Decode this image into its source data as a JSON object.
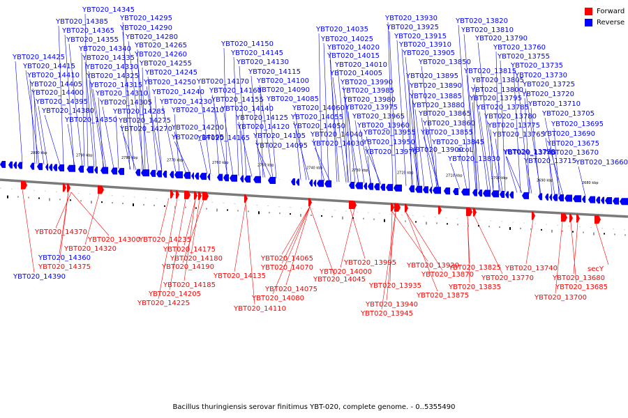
{
  "legend": {
    "forward_label": "Forward",
    "reverse_label": "Reverse",
    "forward_color": "#ff0000",
    "reverse_color": "#0000ff"
  },
  "caption": "Bacillus thuringiensis serovar finitimus YBT-020, complete genome. - 0..5355490",
  "ticks": [
    "2800 kbp",
    "2790 kbp",
    "2780 kbp",
    "2770 kbp",
    "2760 kbp",
    "2750 kbp",
    "2740 kbp",
    "2730 kbp",
    "2720 kbp",
    "2710 kbp",
    "2700 kbp",
    "2690 kbp",
    "2680 kbp"
  ],
  "reverse_labels": [
    "YBT020_14345",
    "YBT020_14385",
    "YBT020_14295",
    "YBT020_14365",
    "YBT020_14290",
    "YBT020_14355",
    "YBT020_14280",
    "YBT020_14340",
    "YBT020_14265",
    "YBT020_14425",
    "YBT020_14335",
    "YBT020_14260",
    "YBT020_14415",
    "YBT020_14330",
    "YBT020_14255",
    "YBT020_14410",
    "YBT020_14325",
    "YBT020_14245",
    "YBT020_14405",
    "YBT020_14315",
    "YBT020_14250",
    "YBT020_14400",
    "YBT020_14310",
    "YBT020_14240",
    "YBT020_14395",
    "YBT020_14305",
    "YBT020_14230",
    "YBT020_14380",
    "YBT020_14285",
    "YBT020_14210",
    "YBT020_14350",
    "YBT020_14275",
    "YBT020_14200",
    "YBT020_14270",
    "YBT020_14195",
    "YBT020_14150",
    "YBT020_14145",
    "YBT020_14130",
    "YBT020_14115",
    "YBT020_14170",
    "YBT020_14100",
    "YBT020_14160",
    "YBT020_14090",
    "YBT020_14155",
    "YBT020_14085",
    "YBT020_14140",
    "YBT020_14060",
    "YBT020_14125",
    "YBT020_14055",
    "YBT020_14120",
    "YBT020_14050",
    "YBT020_14165",
    "YBT020_14105",
    "YBT020_14040",
    "YBT020_14095",
    "YBT020_14030",
    "YBT020_14035",
    "YBT020_14025",
    "YBT020_14020",
    "YBT020_14015",
    "YBT020_14010",
    "YBT020_14005",
    "YBT020_13990",
    "YBT020_13985",
    "YBT020_13980",
    "YBT020_13975",
    "YBT020_13965",
    "YBT020_13960",
    "YBT020_13955",
    "YBT020_13950",
    "YBT020_13970",
    "YBT020_13930",
    "YBT020_13925",
    "YBT020_13915",
    "YBT020_13910",
    "YBT020_13905",
    "YBT020_13850",
    "YBT020_13895",
    "YBT020_13890",
    "YBT020_13885",
    "YBT020_13880",
    "YBT020_13865",
    "YBT020_13860",
    "YBT020_13855",
    "YBT020_13845",
    "YBT020_13900",
    "acoL",
    "YBT020_13830",
    "YBT020_13820",
    "YBT020_13810",
    "YBT020_13790",
    "YBT020_13760",
    "YBT020_13755",
    "YBT020_13735",
    "YBT020_13815",
    "YBT020_13730",
    "YBT020_13805",
    "YBT020_13725",
    "YBT020_13800",
    "YBT020_13720",
    "YBT020_13795",
    "YBT020_13710",
    "YBT020_13785",
    "YBT020_13780",
    "YBT020_13705",
    "YBT020_13775",
    "YBT020_13695",
    "YBT020_13765",
    "YBT020_13690",
    "YBT020_13750",
    "YBT020_13675",
    "YBT020_13745",
    "YBT020_13670",
    "YBT020_13715",
    "YBT020_13660"
  ],
  "forward_labels": [
    "YBT020_14370",
    "YBT020_14300",
    "YBT020_14235",
    "YBT020_14320",
    "YBT020_14175",
    "YBT020_14360",
    "YBT020_14180",
    "YBT020_14375",
    "YBT020_14190",
    "YBT020_14390",
    "YBT020_14135",
    "YBT020_14185",
    "YBT020_14205",
    "YBT020_14225",
    "YBT020_14065",
    "YBT020_14070",
    "YBT020_14045",
    "YBT020_14075",
    "YBT020_14080",
    "YBT020_14110",
    "YBT020_13995",
    "YBT020_14000",
    "YBT020_13920",
    "YBT020_13870",
    "YBT020_13935",
    "YBT020_13875",
    "YBT020_13940",
    "YBT020_13945",
    "YBT020_13825",
    "YBT020_13740",
    "secY",
    "YBT020_13770",
    "YBT020_13680",
    "YBT020_13835",
    "YBT020_13685",
    "YBT020_13700"
  ]
}
